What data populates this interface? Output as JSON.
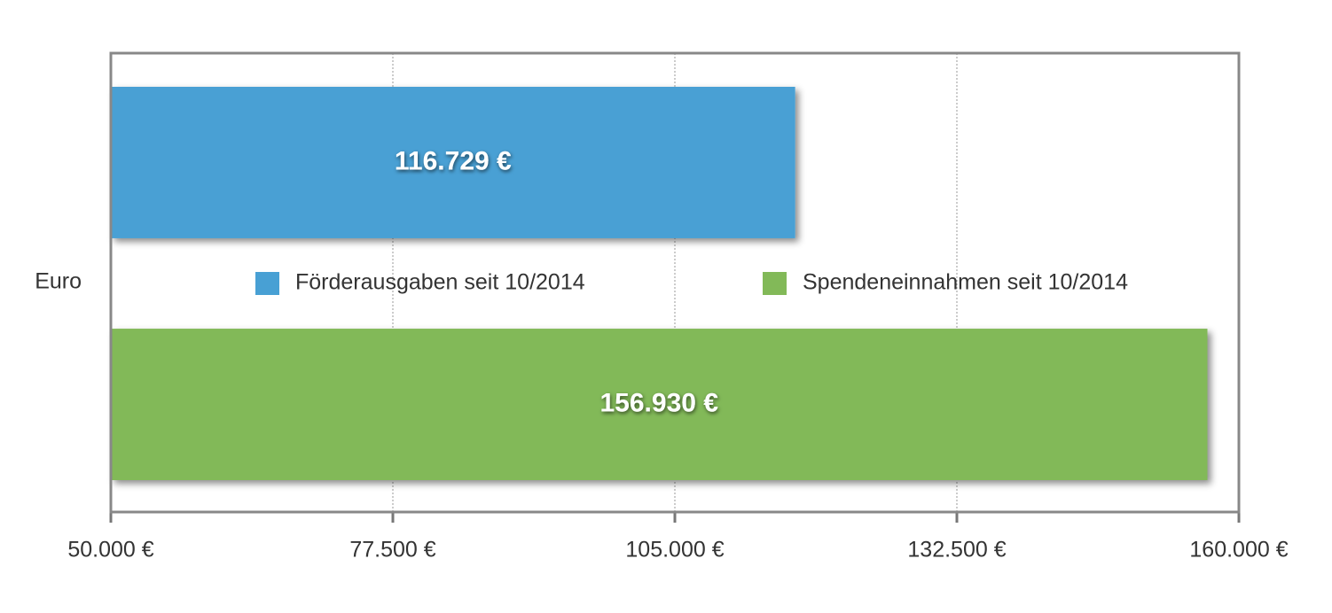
{
  "chart_data": {
    "type": "bar",
    "orientation": "horizontal",
    "categories": [
      "Euro"
    ],
    "series": [
      {
        "name": "Förderausgaben seit 10/2014",
        "color": "#48a0d4",
        "values": [
          116729
        ],
        "value_labels": [
          "116.729 €"
        ]
      },
      {
        "name": "Spendeneinnahmen seit 10/2014",
        "color": "#82b958",
        "values": [
          156930
        ],
        "value_labels": [
          "156.930 €"
        ]
      }
    ],
    "xlim": [
      50000,
      160000
    ],
    "xticks": [
      {
        "value": 50000,
        "label": "50.000 €"
      },
      {
        "value": 77500,
        "label": "77.500 €"
      },
      {
        "value": 105000,
        "label": "105.000 €"
      },
      {
        "value": 132500,
        "label": "132.500 €"
      },
      {
        "value": 160000,
        "label": "160.000 €"
      }
    ],
    "grid": true,
    "legend": "center"
  }
}
